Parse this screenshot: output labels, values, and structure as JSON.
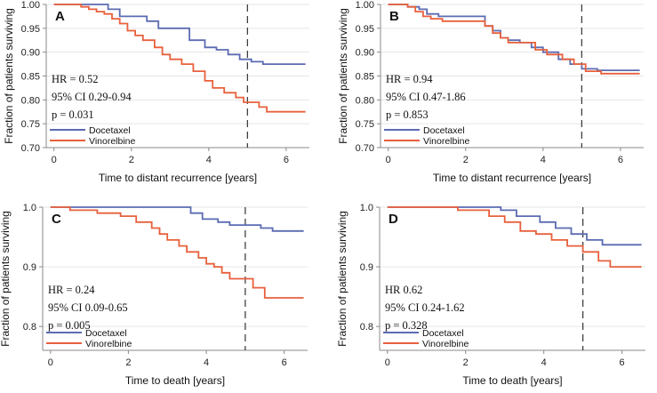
{
  "colors": {
    "docetaxel": "#5b6bb2",
    "vinorelbine": "#e8603c",
    "grid": "#e6e6e6",
    "axis": "#888888",
    "vline": "#333333"
  },
  "chart_data": [
    {
      "type": "line",
      "panel": "A",
      "xlabel": "Time to distant recurrence [years]",
      "ylabel": "Fraction of patients surviving",
      "xlim": [
        -0.2,
        6.6
      ],
      "ylim": [
        0.7,
        1.0
      ],
      "xticks": [
        0,
        2,
        4,
        6
      ],
      "yticks": [
        0.7,
        0.75,
        0.8,
        0.85,
        0.9,
        0.95,
        1.0
      ],
      "ytick_labels": [
        "0.70",
        "0.75",
        "0.80",
        "0.85",
        "0.90",
        "0.95",
        "1.00"
      ],
      "vline": 5,
      "stats": {
        "hr": "HR = 0.52",
        "ci": "95% CI 0.29-0.94",
        "p": "p = 0.031"
      },
      "legend": [
        "Docetaxel",
        "Vinorelbine"
      ],
      "series": [
        {
          "name": "Docetaxel",
          "x": [
            0,
            1.4,
            1.7,
            2.4,
            2.7,
            3.5,
            3.9,
            4.2,
            4.5,
            4.8,
            5.1,
            5.4,
            6.5
          ],
          "y": [
            1.0,
            0.99,
            0.975,
            0.965,
            0.95,
            0.925,
            0.91,
            0.905,
            0.895,
            0.885,
            0.88,
            0.875,
            0.875
          ]
        },
        {
          "name": "Vinorelbine",
          "x": [
            0,
            0.7,
            0.9,
            1.1,
            1.3,
            1.5,
            1.7,
            1.9,
            2.1,
            2.3,
            2.6,
            2.8,
            3.0,
            3.3,
            3.6,
            3.9,
            4.1,
            4.4,
            4.7,
            4.9,
            5.3,
            5.5,
            6.5
          ],
          "y": [
            1.0,
            0.995,
            0.99,
            0.985,
            0.98,
            0.97,
            0.96,
            0.945,
            0.935,
            0.925,
            0.91,
            0.895,
            0.885,
            0.875,
            0.86,
            0.84,
            0.825,
            0.815,
            0.805,
            0.795,
            0.785,
            0.775,
            0.775
          ]
        }
      ]
    },
    {
      "type": "line",
      "panel": "B",
      "xlabel": "Time to distant recurrence [years]",
      "ylabel": "Fraction of patients surviving",
      "xlim": [
        -0.2,
        6.6
      ],
      "ylim": [
        0.7,
        1.0
      ],
      "xticks": [
        0,
        2,
        4,
        6
      ],
      "yticks": [
        0.7,
        0.75,
        0.8,
        0.85,
        0.9,
        0.95,
        1.0
      ],
      "ytick_labels": [
        "0.70",
        "0.75",
        "0.80",
        "0.85",
        "0.90",
        "0.95",
        "1.00"
      ],
      "vline": 5,
      "stats": {
        "hr": "HR = 0.94",
        "ci": "95% CI 0.47-1.86",
        "p": "p = 0.853"
      },
      "legend": [
        "Docetaxel",
        "Vinorelbine"
      ],
      "series": [
        {
          "name": "Docetaxel",
          "x": [
            0,
            0.5,
            0.8,
            1.0,
            1.3,
            1.8,
            2.2,
            2.5,
            2.7,
            2.9,
            3.1,
            3.4,
            3.7,
            4.0,
            4.4,
            4.7,
            5.0,
            5.4,
            6.5
          ],
          "y": [
            1.0,
            0.995,
            0.99,
            0.98,
            0.975,
            0.975,
            0.975,
            0.955,
            0.945,
            0.93,
            0.925,
            0.92,
            0.91,
            0.9,
            0.885,
            0.875,
            0.865,
            0.862,
            0.862
          ]
        },
        {
          "name": "Vinorelbine",
          "x": [
            0,
            0.5,
            0.7,
            0.9,
            1.1,
            1.4,
            2.2,
            2.5,
            2.7,
            2.9,
            3.1,
            3.6,
            3.8,
            4.1,
            4.5,
            4.8,
            5.1,
            5.5,
            6.5
          ],
          "y": [
            1.0,
            0.995,
            0.985,
            0.975,
            0.97,
            0.965,
            0.965,
            0.955,
            0.94,
            0.93,
            0.92,
            0.92,
            0.905,
            0.895,
            0.885,
            0.875,
            0.86,
            0.855,
            0.855
          ]
        }
      ]
    },
    {
      "type": "line",
      "panel": "C",
      "xlabel": "Time to death [years]",
      "ylabel": "Fraction of patients surviving",
      "xlim": [
        -0.2,
        6.6
      ],
      "ylim": [
        0.76,
        1.0
      ],
      "xticks": [
        0,
        2,
        4,
        6
      ],
      "yticks": [
        0.8,
        0.9,
        1.0
      ],
      "ytick_labels": [
        "0.8",
        "0.9",
        "1.0"
      ],
      "vline": 5,
      "stats": {
        "hr": "HR = 0.24",
        "ci": "95% CI 0.09-0.65",
        "p": "p = 0.005"
      },
      "legend": [
        "Docetaxel",
        "Vinorelbine"
      ],
      "series": [
        {
          "name": "Docetaxel",
          "x": [
            0,
            3.6,
            3.9,
            4.3,
            4.6,
            5.4,
            5.7,
            6.5
          ],
          "y": [
            1.0,
            0.99,
            0.98,
            0.975,
            0.97,
            0.965,
            0.96,
            0.96
          ]
        },
        {
          "name": "Vinorelbine",
          "x": [
            0,
            0.5,
            1.2,
            1.8,
            2.2,
            2.6,
            2.8,
            3.0,
            3.3,
            3.5,
            3.8,
            4.0,
            4.2,
            4.4,
            4.6,
            5.2,
            5.5,
            6.5
          ],
          "y": [
            1.0,
            0.995,
            0.99,
            0.985,
            0.975,
            0.965,
            0.955,
            0.945,
            0.935,
            0.925,
            0.915,
            0.905,
            0.9,
            0.89,
            0.88,
            0.865,
            0.848,
            0.848
          ]
        }
      ]
    },
    {
      "type": "line",
      "panel": "D",
      "xlabel": "Time to death [years]",
      "ylabel": "Fraction of patients surviving",
      "xlim": [
        -0.2,
        6.6
      ],
      "ylim": [
        0.76,
        1.0
      ],
      "xticks": [
        0,
        2,
        4,
        6
      ],
      "yticks": [
        0.8,
        0.9,
        1.0
      ],
      "ytick_labels": [
        "0.8",
        "0.9",
        "1.0"
      ],
      "vline": 5,
      "stats": {
        "hr": "HR 0.62",
        "ci": "95% CI 0.24-1.62",
        "p": "p = 0.328"
      },
      "legend": [
        "Docetaxel",
        "Vinorelbine"
      ],
      "series": [
        {
          "name": "Docetaxel",
          "x": [
            0,
            2.9,
            3.3,
            3.9,
            4.3,
            4.7,
            5.1,
            5.5,
            6.5
          ],
          "y": [
            1.0,
            0.995,
            0.985,
            0.975,
            0.965,
            0.955,
            0.945,
            0.937,
            0.937
          ]
        },
        {
          "name": "Vinorelbine",
          "x": [
            0,
            1.8,
            2.6,
            3.0,
            3.4,
            3.8,
            4.2,
            4.6,
            5.0,
            5.4,
            5.7,
            6.5
          ],
          "y": [
            1.0,
            0.995,
            0.985,
            0.975,
            0.96,
            0.955,
            0.945,
            0.935,
            0.925,
            0.91,
            0.9,
            0.9
          ]
        }
      ]
    }
  ]
}
